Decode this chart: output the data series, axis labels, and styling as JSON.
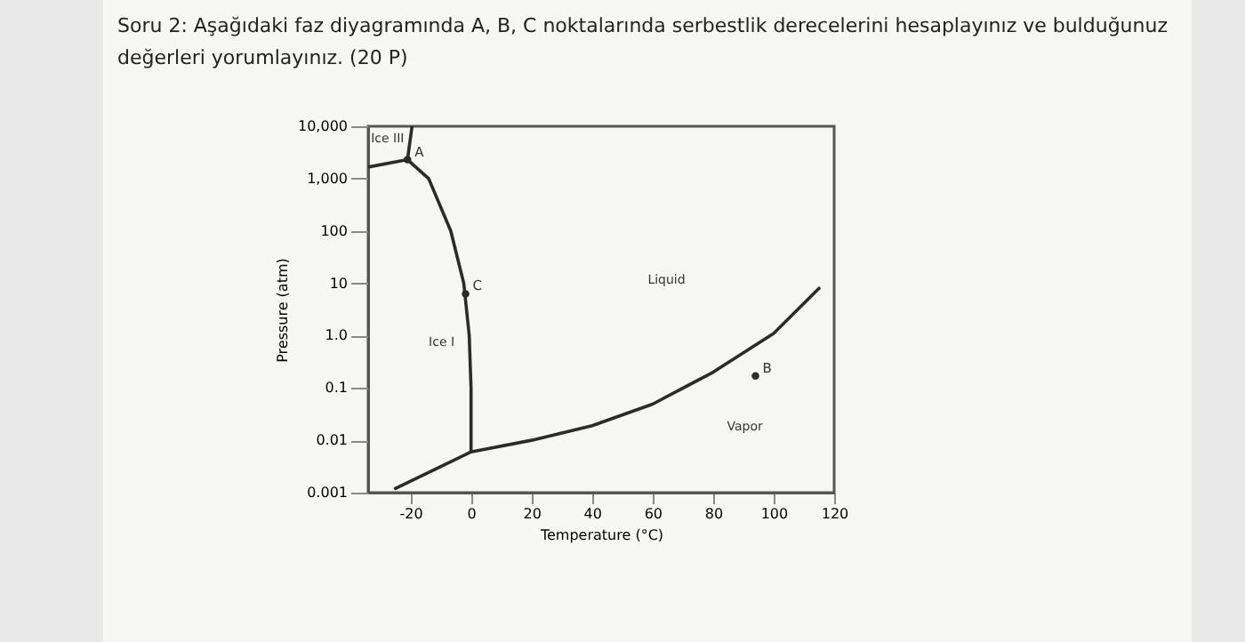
{
  "chart_data": {
    "type": "line",
    "title": "Soru 2: Aşağıdaki faz diyagramında A, B, C noktalarında serbestlik derecelerini hesaplayınız ve bulduğunuz değerleri yorumlayınız. (20 P)",
    "xlabel": "Temperature (°C)",
    "ylabel": "Pressure (atm)",
    "log": "y",
    "grid": false,
    "xlim": [
      -34,
      120
    ],
    "ylim": [
      0.001,
      10000
    ],
    "xticks": [
      -20,
      0,
      20,
      40,
      60,
      80,
      100,
      120
    ],
    "yticks": [
      {
        "value": 0.001,
        "label": "0.001"
      },
      {
        "value": 0.01,
        "label": "0.01"
      },
      {
        "value": 0.1,
        "label": "0.1"
      },
      {
        "value": 1,
        "label": "1.0"
      },
      {
        "value": 10,
        "label": "10"
      },
      {
        "value": 100,
        "label": "100"
      },
      {
        "value": 1000,
        "label": "1,000"
      },
      {
        "value": 10000,
        "label": "10,000"
      }
    ],
    "series": [
      {
        "color": "#2b2b2b",
        "x": [
          -34,
          -21
        ],
        "values": [
          1660,
          2300
        ]
      },
      {
        "color": "#2b2b2b",
        "x": [
          -21,
          -19.5
        ],
        "values": [
          2300,
          10000
        ]
      },
      {
        "color": "#2b2b2b",
        "x": [
          -21,
          -14,
          -6.7,
          -2.4,
          -0.6,
          0,
          0
        ],
        "values": [
          2300,
          1000,
          100,
          10,
          1,
          0.1,
          0.006
        ]
      },
      {
        "color": "#2b2b2b",
        "x": [
          -25,
          0,
          20,
          40,
          60,
          80,
          100,
          115
        ],
        "values": [
          0.0012,
          0.006,
          0.01,
          0.019,
          0.049,
          0.2,
          1.1,
          8
        ]
      },
      {
        "type": "scatter",
        "color": "#2b2b2b",
        "marker": "circle",
        "x": [
          -21,
          94,
          -1.8
        ],
        "values": [
          2300,
          0.17,
          6.3
        ]
      }
    ],
    "annotations": [
      {
        "text": "A",
        "x": -21,
        "y": 2300
      },
      {
        "text": "B",
        "x": 94,
        "y": 0.17
      },
      {
        "text": "C",
        "x": -1.8,
        "y": 6.3
      },
      "Ice III",
      "Ice I",
      "Liquid",
      "Vapor"
    ]
  }
}
